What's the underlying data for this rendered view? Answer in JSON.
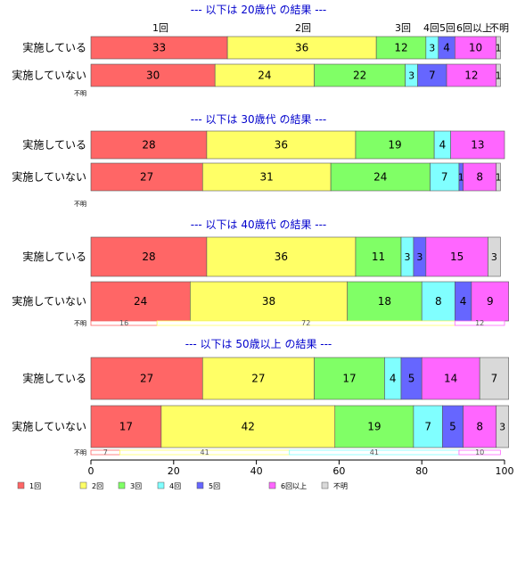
{
  "chart_data": {
    "type": "bar",
    "orientation": "horizontal",
    "stacked": true,
    "percent_stacked": true,
    "xlim": [
      0,
      100
    ],
    "xticks": [
      0,
      20,
      40,
      60,
      80,
      100
    ],
    "grid": false,
    "legend_position": "bottom",
    "categories": [
      "1回",
      "2回",
      "3回",
      "4回",
      "5回",
      "6回以上",
      "不明"
    ],
    "colors": [
      "#ff6666",
      "#ffff66",
      "#80ff66",
      "#80ffff",
      "#6666ff",
      "#ff66ff",
      "#d9d9d9"
    ],
    "top_category_labels": [
      "1回",
      "2回",
      "3回",
      "4回",
      "5回",
      "6回以上",
      "不明"
    ],
    "panels": [
      {
        "title": "--- 以下は 20歳代 の結果 ---",
        "rows": [
          {
            "label": "実施している",
            "values": [
              33,
              36,
              12,
              3,
              4,
              10,
              1
            ]
          },
          {
            "label": "実施していない",
            "values": [
              30,
              24,
              22,
              3,
              7,
              12,
              1
            ]
          }
        ],
        "unknown_label": "不明",
        "unknown_values": []
      },
      {
        "title": "--- 以下は 30歳代 の結果 ---",
        "rows": [
          {
            "label": "実施している",
            "values": [
              28,
              36,
              19,
              4,
              0,
              13,
              0
            ]
          },
          {
            "label": "実施していない",
            "values": [
              27,
              31,
              24,
              7,
              1,
              8,
              1
            ]
          }
        ],
        "unknown_label": "不明",
        "unknown_values": []
      },
      {
        "title": "--- 以下は 40歳代 の結果 ---",
        "rows": [
          {
            "label": "実施している",
            "values": [
              28,
              36,
              11,
              3,
              3,
              15,
              3
            ]
          },
          {
            "label": "実施していない",
            "values": [
              24,
              38,
              18,
              8,
              4,
              9,
              0
            ]
          }
        ],
        "unknown_label": "不明",
        "unknown_values": [
          16,
          72,
          0,
          0,
          0,
          12,
          0
        ]
      },
      {
        "title": "--- 以下は 50歳以上 の結果 ---",
        "rows": [
          {
            "label": "実施している",
            "values": [
              27,
              27,
              17,
              4,
              5,
              14,
              7
            ]
          },
          {
            "label": "実施していない",
            "values": [
              17,
              42,
              19,
              7,
              5,
              8,
              3
            ]
          }
        ],
        "unknown_label": "不明",
        "unknown_values": [
          7,
          41,
          0,
          41,
          0,
          10,
          0
        ]
      }
    ]
  }
}
